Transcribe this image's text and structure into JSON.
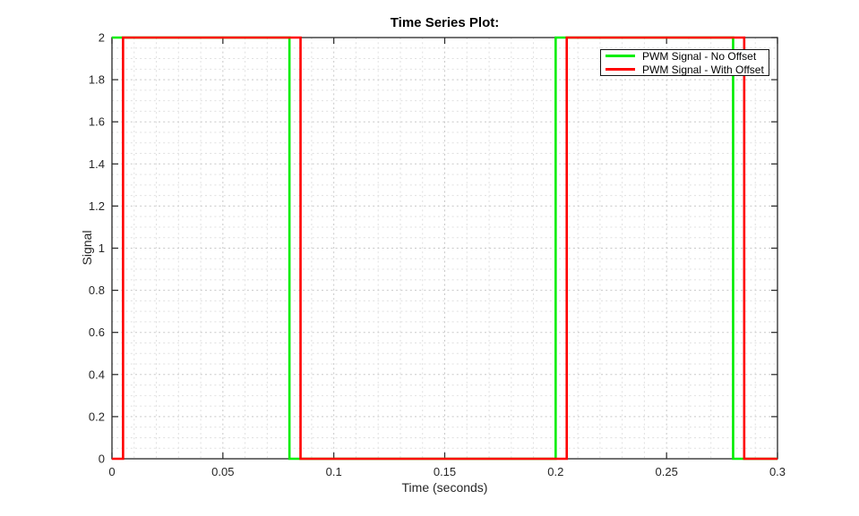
{
  "chart_data": {
    "type": "line",
    "subtype": "step-square-wave",
    "title": "Time Series Plot:",
    "xlabel": "Time (seconds)",
    "ylabel": "Signal",
    "xlim": [
      0,
      0.3
    ],
    "ylim": [
      0,
      2
    ],
    "xtick_values": [
      0,
      0.05,
      0.1,
      0.15,
      0.2,
      0.25,
      0.3
    ],
    "xtick_labels": [
      "0",
      "0.05",
      "0.1",
      "0.15",
      "0.2",
      "0.25",
      "0.3"
    ],
    "ytick_values": [
      0,
      0.2,
      0.4,
      0.6,
      0.8,
      1,
      1.2,
      1.4,
      1.6,
      1.8,
      2
    ],
    "ytick_labels": [
      "0",
      "0.2",
      "0.4",
      "0.6",
      "0.8",
      "1",
      "1.2",
      "1.4",
      "1.6",
      "1.8",
      "2"
    ],
    "grid": {
      "style": "dotted",
      "x_minor_spacing": 0.01,
      "y_minor_spacing": 0.05,
      "minor_color": "#e0e0e0",
      "major_color": "#c8c8c8"
    },
    "axis_color": "#262626",
    "text_color": "#262626",
    "legend": {
      "position": "northeast",
      "entries": [
        {
          "label": "PWM Signal - No Offset",
          "color": "#00ee00"
        },
        {
          "label": "PWM Signal - With Offset",
          "color": "#ff0000"
        }
      ]
    },
    "series": [
      {
        "name": "PWM Signal - No Offset",
        "color": "#00ee00",
        "line_width": 2.6,
        "points": [
          [
            0,
            2
          ],
          [
            0.08,
            2
          ],
          [
            0.08,
            0
          ],
          [
            0.2,
            0
          ],
          [
            0.2,
            2
          ],
          [
            0.28,
            2
          ],
          [
            0.28,
            0
          ],
          [
            0.3,
            0
          ]
        ]
      },
      {
        "name": "PWM Signal - With Offset",
        "color": "#ff0000",
        "line_width": 2.6,
        "points": [
          [
            0,
            0
          ],
          [
            0.005,
            0
          ],
          [
            0.005,
            2
          ],
          [
            0.085,
            2
          ],
          [
            0.085,
            0
          ],
          [
            0.205,
            0
          ],
          [
            0.205,
            2
          ],
          [
            0.285,
            2
          ],
          [
            0.285,
            0
          ],
          [
            0.3,
            0
          ]
        ]
      }
    ]
  }
}
